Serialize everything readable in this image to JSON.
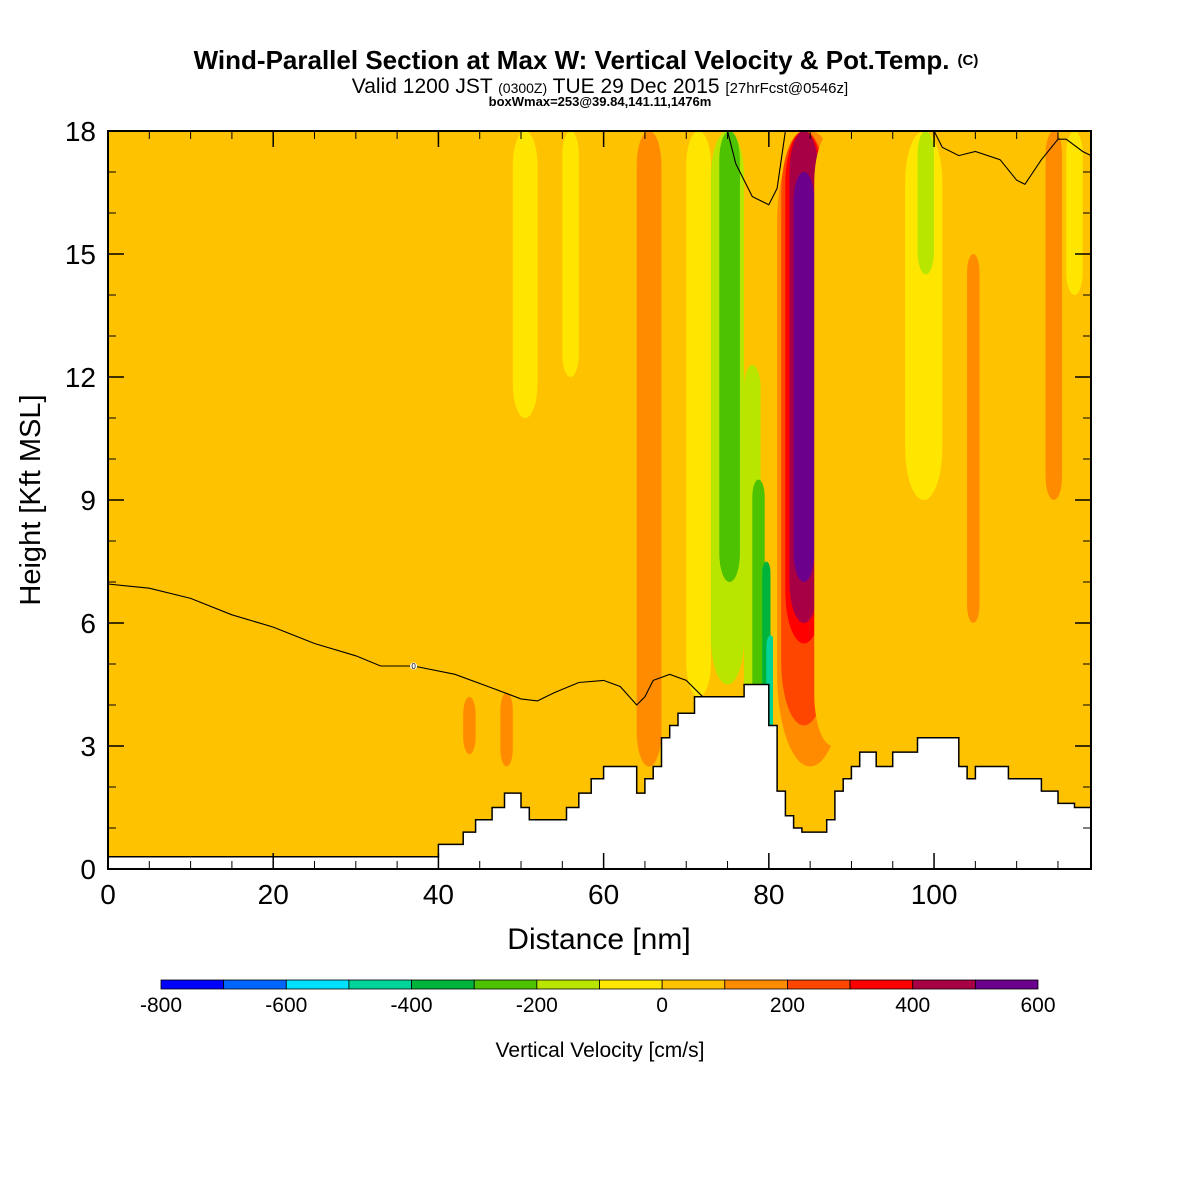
{
  "chart_data": {
    "type": "heatmap",
    "title": "Wind-Parallel Section at Max W: Vertical Velocity & Pot.Temp.",
    "title_mark": "(C)",
    "subtitle": {
      "prefix": "Valid 1200 JST",
      "utc": "(0300Z)",
      "date": "TUE 29 Dec 2015",
      "fcst": "[27hrFcst@0546z]"
    },
    "box_note": "boxWmax=253@39.84,141.11,1476m",
    "xlabel": "Distance [nm]",
    "ylabel": "Height [Kft MSL]",
    "xlim": [
      0,
      119
    ],
    "ylim": [
      0,
      18
    ],
    "x_ticks": [
      0,
      20,
      40,
      60,
      80,
      100
    ],
    "y_ticks": [
      0,
      3,
      6,
      9,
      12,
      15,
      18
    ],
    "x_tick_labels": [
      "0",
      "20",
      "40",
      "60",
      "80",
      "100"
    ],
    "y_tick_labels": [
      "0",
      "3",
      "6",
      "9",
      "12",
      "15",
      "18"
    ],
    "background_color": "#ffc200",
    "vertical_bands": [
      {
        "x": [
          0,
          2
        ],
        "y": [
          1.5,
          7.3
        ],
        "value": 0
      },
      {
        "x": [
          2,
          3.5
        ],
        "y": [
          1.8,
          5.8
        ],
        "value": 0
      },
      {
        "x": [
          4,
          7
        ],
        "y": [
          0.3,
          1.6
        ],
        "value": 0
      },
      {
        "x": [
          21,
          22.5
        ],
        "y": [
          0.3,
          5.2
        ],
        "value": 0
      },
      {
        "x": [
          27.5,
          29.5
        ],
        "y": [
          0.3,
          8.1
        ],
        "value": 0
      },
      {
        "x": [
          46,
          52
        ],
        "y": [
          10,
          18
        ],
        "value": 0
      },
      {
        "x": [
          52,
          56
        ],
        "y": [
          1.2,
          18
        ],
        "value": 0
      },
      {
        "x": [
          59,
          63
        ],
        "y": [
          2.5,
          18
        ],
        "value": 0
      },
      {
        "x": [
          49,
          52
        ],
        "y": [
          11,
          18
        ],
        "value": -100
      },
      {
        "x": [
          55,
          57
        ],
        "y": [
          12,
          18
        ],
        "value": -100
      },
      {
        "x": [
          64,
          67
        ],
        "y": [
          2.5,
          18
        ],
        "value": 100
      },
      {
        "x": [
          67,
          70
        ],
        "y": [
          4,
          18
        ],
        "value": 0
      },
      {
        "x": [
          70,
          73
        ],
        "y": [
          4.2,
          18
        ],
        "value": -100
      },
      {
        "x": [
          73,
          77
        ],
        "y": [
          4.5,
          18
        ],
        "value": -200
      },
      {
        "x": [
          74,
          76.5
        ],
        "y": [
          7,
          18
        ],
        "value": -300
      },
      {
        "x": [
          77,
          79
        ],
        "y": [
          3.5,
          12.3
        ],
        "value": -200
      },
      {
        "x": [
          78,
          79.5
        ],
        "y": [
          2.3,
          9.5
        ],
        "value": -300
      },
      {
        "x": [
          79.2,
          80.2
        ],
        "y": [
          3,
          7.5
        ],
        "value": -400
      },
      {
        "x": [
          79.7,
          80.7
        ],
        "y": [
          2,
          5.7
        ],
        "value": -500
      },
      {
        "x": [
          80.5,
          82
        ],
        "y": [
          1.5,
          18
        ],
        "value": 0
      },
      {
        "x": [
          81,
          89
        ],
        "y": [
          2.5,
          18
        ],
        "value": 100
      },
      {
        "x": [
          81.5,
          87
        ],
        "y": [
          3.5,
          18
        ],
        "value": 200
      },
      {
        "x": [
          82,
          86.5
        ],
        "y": [
          5.5,
          18
        ],
        "value": 300
      },
      {
        "x": [
          82.5,
          86
        ],
        "y": [
          6,
          18
        ],
        "value": 400
      },
      {
        "x": [
          83,
          85.5
        ],
        "y": [
          7,
          17
        ],
        "value": 500
      },
      {
        "x": [
          85.5,
          90
        ],
        "y": [
          3,
          18
        ],
        "value": 0
      },
      {
        "x": [
          88,
          92
        ],
        "y": [
          4,
          14
        ],
        "value": 0
      },
      {
        "x": [
          94,
          103
        ],
        "y": [
          2.5,
          18
        ],
        "value": 0
      },
      {
        "x": [
          96.5,
          101
        ],
        "y": [
          9,
          18
        ],
        "value": -100
      },
      {
        "x": [
          98,
          100
        ],
        "y": [
          14.5,
          18
        ],
        "value": -200
      },
      {
        "x": [
          103,
          106
        ],
        "y": [
          3,
          18
        ],
        "value": 0
      },
      {
        "x": [
          104,
          105.5
        ],
        "y": [
          6,
          15
        ],
        "value": 100
      },
      {
        "x": [
          106,
          112
        ],
        "y": [
          2.5,
          16
        ],
        "value": 0
      },
      {
        "x": [
          113,
          119
        ],
        "y": [
          1.6,
          18
        ],
        "value": 0
      },
      {
        "x": [
          113.5,
          115.5
        ],
        "y": [
          9,
          18
        ],
        "value": 100
      },
      {
        "x": [
          116,
          118
        ],
        "y": [
          14,
          18
        ],
        "value": -100
      }
    ],
    "small_blobs": [
      {
        "x": [
          43,
          44.5
        ],
        "y": [
          2.8,
          4.2
        ],
        "value": 100
      },
      {
        "x": [
          47.5,
          49
        ],
        "y": [
          2.5,
          4.3
        ],
        "value": 100
      }
    ],
    "terrain_profile": [
      [
        0,
        0.3
      ],
      [
        40,
        0.3
      ],
      [
        40,
        0.6
      ],
      [
        43,
        0.6
      ],
      [
        43,
        0.9
      ],
      [
        44.5,
        0.9
      ],
      [
        44.5,
        1.2
      ],
      [
        46.5,
        1.2
      ],
      [
        46.5,
        1.5
      ],
      [
        48,
        1.5
      ],
      [
        48,
        1.85
      ],
      [
        50,
        1.85
      ],
      [
        50,
        1.5
      ],
      [
        51,
        1.5
      ],
      [
        51,
        1.2
      ],
      [
        55.5,
        1.2
      ],
      [
        55.5,
        1.5
      ],
      [
        57,
        1.5
      ],
      [
        57,
        1.85
      ],
      [
        58.5,
        1.85
      ],
      [
        58.5,
        2.2
      ],
      [
        60,
        2.2
      ],
      [
        60,
        2.5
      ],
      [
        64,
        2.5
      ],
      [
        64,
        1.85
      ],
      [
        65,
        1.85
      ],
      [
        65,
        2.2
      ],
      [
        66,
        2.2
      ],
      [
        66,
        2.5
      ],
      [
        67,
        2.5
      ],
      [
        67,
        3.2
      ],
      [
        68,
        3.2
      ],
      [
        68,
        3.5
      ],
      [
        69,
        3.5
      ],
      [
        69,
        3.8
      ],
      [
        71,
        3.8
      ],
      [
        71,
        4.2
      ],
      [
        77,
        4.2
      ],
      [
        77,
        4.5
      ],
      [
        80,
        4.5
      ],
      [
        80,
        3.5
      ],
      [
        81,
        3.5
      ],
      [
        81,
        1.9
      ],
      [
        82,
        1.9
      ],
      [
        82,
        1.3
      ],
      [
        83,
        1.3
      ],
      [
        83,
        1.0
      ],
      [
        84,
        1.0
      ],
      [
        84,
        0.9
      ],
      [
        87,
        0.9
      ],
      [
        87,
        1.2
      ],
      [
        88,
        1.2
      ],
      [
        88,
        1.9
      ],
      [
        89,
        1.9
      ],
      [
        89,
        2.2
      ],
      [
        90,
        2.2
      ],
      [
        90,
        2.5
      ],
      [
        91,
        2.5
      ],
      [
        91,
        2.85
      ],
      [
        93,
        2.85
      ],
      [
        93,
        2.5
      ],
      [
        95,
        2.5
      ],
      [
        95,
        2.85
      ],
      [
        98,
        2.85
      ],
      [
        98,
        3.2
      ],
      [
        103,
        3.2
      ],
      [
        103,
        2.5
      ],
      [
        104,
        2.5
      ],
      [
        104,
        2.2
      ],
      [
        105,
        2.2
      ],
      [
        105,
        2.5
      ],
      [
        109,
        2.5
      ],
      [
        109,
        2.2
      ],
      [
        113,
        2.2
      ],
      [
        113,
        1.9
      ],
      [
        115,
        1.9
      ],
      [
        115,
        1.6
      ],
      [
        117,
        1.6
      ],
      [
        117,
        1.5
      ],
      [
        119,
        1.5
      ]
    ],
    "isentrope_low": [
      [
        0,
        6.95
      ],
      [
        5,
        6.85
      ],
      [
        10,
        6.6
      ],
      [
        15,
        6.2
      ],
      [
        20,
        5.9
      ],
      [
        25,
        5.5
      ],
      [
        30,
        5.2
      ],
      [
        33,
        4.95
      ],
      [
        37,
        4.95
      ],
      [
        42,
        4.75
      ],
      [
        46,
        4.45
      ],
      [
        50,
        4.15
      ],
      [
        52,
        4.1
      ],
      [
        54,
        4.3
      ],
      [
        57,
        4.55
      ],
      [
        60,
        4.6
      ],
      [
        62,
        4.45
      ],
      [
        64,
        4.0
      ],
      [
        65,
        4.2
      ],
      [
        66,
        4.6
      ],
      [
        68,
        4.75
      ],
      [
        70,
        4.6
      ],
      [
        72,
        4.2
      ]
    ],
    "isentrope_label": {
      "x": 37,
      "y": 4.95,
      "text": "0"
    },
    "isentrope_high": [
      [
        75,
        18
      ],
      [
        76,
        17.2
      ],
      [
        78,
        16.4
      ],
      [
        80,
        16.2
      ],
      [
        81,
        16.6
      ],
      [
        82,
        18
      ]
    ],
    "isentrope_high2": [
      [
        100,
        18
      ],
      [
        101,
        17.6
      ],
      [
        103,
        17.4
      ],
      [
        105,
        17.5
      ],
      [
        108,
        17.3
      ],
      [
        110,
        16.8
      ],
      [
        111,
        16.7
      ],
      [
        113,
        17.3
      ],
      [
        115,
        17.8
      ],
      [
        116,
        17.8
      ],
      [
        118,
        17.5
      ],
      [
        119,
        17.4
      ]
    ],
    "colorbar": {
      "label": "Vertical Velocity [cm/s]",
      "min": -800,
      "max": 600,
      "step": 100,
      "colors": [
        "#0000ff",
        "#0066ff",
        "#00e0ff",
        "#00d49b",
        "#00b33a",
        "#4dc200",
        "#b8e600",
        "#ffe600",
        "#ffc200",
        "#ff8c00",
        "#ff4600",
        "#ff0000",
        "#a80045",
        "#6b008c"
      ],
      "tick_values": [
        -800,
        -600,
        -400,
        -200,
        0,
        200,
        400,
        600
      ],
      "tick_labels": [
        "-800",
        "-600",
        "-400",
        "-200",
        "0",
        "200",
        "400",
        "600"
      ]
    }
  }
}
